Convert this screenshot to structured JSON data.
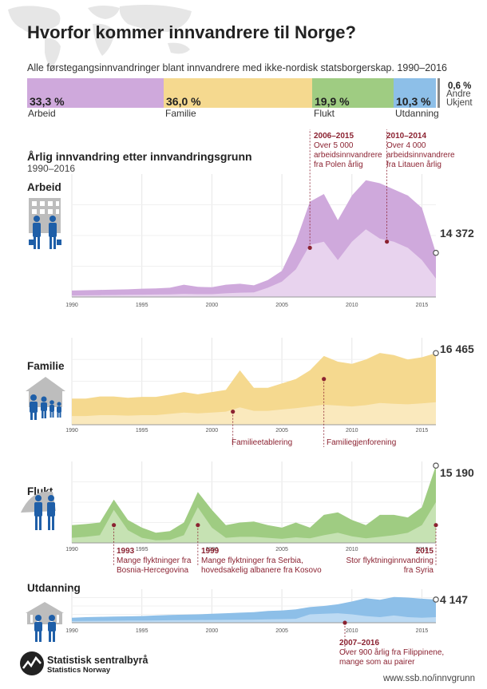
{
  "title": "Hvorfor kommer innvandrere til Norge?",
  "subtitle": "Alle førstegangsinnvandringer blant innvandrere med ikke-nordisk statsborgerskap. 1990–2016",
  "shares": [
    {
      "key": "arbeid",
      "pct": "33,3 %",
      "label": "Arbeid",
      "value": 33.3,
      "color": "#cfa9dc"
    },
    {
      "key": "familie",
      "pct": "36,0 %",
      "label": "Familie",
      "value": 36.0,
      "color": "#f5d98f"
    },
    {
      "key": "flukt",
      "pct": "19,9 %",
      "label": "Flukt",
      "value": 19.9,
      "color": "#9fcc82"
    },
    {
      "key": "utdanning",
      "pct": "10,3 %",
      "label": "Utdanning",
      "value": 10.3,
      "color": "#8dbfe8"
    }
  ],
  "unknown": {
    "pct": "0,6 %",
    "label": "Andre\nUkjent",
    "value": 0.6
  },
  "chart_title": "Årlig innvandring etter innvandringsgrunn",
  "chart_subtitle": "1990–2016",
  "footer": {
    "org": "Statistisk sentralbyrå",
    "org_en": "Statistics Norway",
    "url": "www.ssb.no/innvgrunn"
  },
  "chart_data": [
    {
      "type": "area",
      "name": "Arbeid",
      "title": "Arbeid",
      "x": [
        1990,
        1991,
        1992,
        1993,
        1994,
        1995,
        1996,
        1997,
        1998,
        1999,
        2000,
        2001,
        2002,
        2003,
        2004,
        2005,
        2006,
        2007,
        2008,
        2009,
        2010,
        2011,
        2012,
        2013,
        2014,
        2015,
        2016
      ],
      "total": [
        2100,
        2200,
        2300,
        2400,
        2500,
        2700,
        2800,
        3000,
        4000,
        3300,
        3200,
        4000,
        4300,
        3800,
        5500,
        8500,
        18000,
        31000,
        33500,
        25000,
        33000,
        38000,
        37000,
        35000,
        33000,
        29000,
        14372
      ],
      "inner": [
        500,
        550,
        600,
        650,
        700,
        750,
        800,
        850,
        1000,
        900,
        900,
        1200,
        1400,
        1500,
        3000,
        5000,
        9000,
        17000,
        18000,
        12000,
        18000,
        22000,
        19000,
        18000,
        16000,
        12000,
        6000
      ],
      "ylim": [
        0,
        40000
      ],
      "end_label": "14 372",
      "color_outer": "#cfa9dc",
      "color_inner": "#ecdbf1",
      "line": "#b995c8",
      "annotations": [
        {
          "year": 2007,
          "value": 16000,
          "bold": "2006–2015",
          "text": "Over 5 000\narbeidsinnvandrere\nfra Polen årlig"
        },
        {
          "year": 2012.5,
          "value": 18000,
          "bold": "2010–2014",
          "text": "Over 4 000\narbeidsinnvandrere\nfra Litauen årlig"
        }
      ],
      "xticks": [
        1990,
        1995,
        2000,
        2005,
        2010,
        2015
      ]
    },
    {
      "type": "area",
      "name": "Familie",
      "title": "Familie",
      "x": [
        1990,
        1991,
        1992,
        1993,
        1994,
        1995,
        1996,
        1997,
        1998,
        1999,
        2000,
        2001,
        2002,
        2003,
        2004,
        2005,
        2006,
        2007,
        2008,
        2009,
        2010,
        2011,
        2012,
        2013,
        2014,
        2015,
        2016
      ],
      "total": [
        6000,
        6000,
        6500,
        6500,
        6200,
        6400,
        6400,
        6900,
        7500,
        7000,
        7500,
        8000,
        12500,
        8500,
        8500,
        9500,
        10500,
        12500,
        15800,
        14500,
        14000,
        15000,
        16500,
        16000,
        15000,
        15500,
        16465
      ],
      "inner": [
        2000,
        2000,
        2200,
        2200,
        2100,
        2200,
        2200,
        2500,
        2800,
        2600,
        2800,
        3000,
        4000,
        3200,
        3200,
        3500,
        3800,
        4200,
        4600,
        4400,
        4200,
        4500,
        5000,
        4800,
        4700,
        4900,
        5200
      ],
      "ylim": [
        0,
        20000
      ],
      "end_label": "16 465",
      "color_outer": "#f5d98f",
      "color_inner": "#faebc6",
      "line": "#e8c060",
      "annotations": [
        {
          "year": 2001.5,
          "value": 3000,
          "bold": "",
          "text": "Familieetablering"
        },
        {
          "year": 2008,
          "value": 10500,
          "bold": "",
          "text": "Familiegjenforening"
        }
      ],
      "xticks": [
        1990,
        1995,
        2000,
        2005,
        2010,
        2015
      ]
    },
    {
      "type": "area",
      "name": "Flukt",
      "title": "Flukt",
      "x": [
        1990,
        1991,
        1992,
        1993,
        1994,
        1995,
        1996,
        1997,
        1998,
        1999,
        2000,
        2001,
        2002,
        2003,
        2004,
        2005,
        2006,
        2007,
        2008,
        2009,
        2010,
        2011,
        2012,
        2013,
        2014,
        2015,
        2016
      ],
      "total": [
        3500,
        3700,
        4000,
        8500,
        4500,
        3000,
        2000,
        2300,
        4000,
        10000,
        6500,
        3500,
        4000,
        4200,
        3500,
        3000,
        4000,
        3000,
        5500,
        6000,
        4500,
        3500,
        5500,
        5500,
        5000,
        7000,
        15190
      ],
      "inner": [
        1000,
        1200,
        1500,
        6500,
        2500,
        1000,
        500,
        600,
        1500,
        7000,
        3000,
        1000,
        1200,
        1200,
        1000,
        800,
        1100,
        900,
        1500,
        2000,
        1300,
        900,
        1200,
        1500,
        2000,
        3500,
        8000
      ],
      "ylim": [
        0,
        16000
      ],
      "end_label": "15 190",
      "color_outer": "#9fcc82",
      "color_inner": "#cde5bc",
      "line": "#7fb35e",
      "annotations": [
        {
          "year": 1993,
          "value": 3500,
          "bold": "1993",
          "text": "Mange flyktninger fra\nBosnia-Hercegovina"
        },
        {
          "year": 1999,
          "value": 3500,
          "bold": "1999",
          "text": "Mange flyktninger fra Serbia,\nhovedsakelig albanere fra Kosovo"
        },
        {
          "year": 2016,
          "value": 3500,
          "bold": "2015",
          "text": "Stor flyktninginnvandring\nfra Syria"
        }
      ],
      "xticks": [
        1990,
        1995,
        2000,
        2005,
        2010,
        2015
      ]
    },
    {
      "type": "area",
      "name": "Utdanning",
      "title": "Utdanning",
      "x": [
        1990,
        1991,
        1992,
        1993,
        1994,
        1995,
        1996,
        1997,
        1998,
        1999,
        2000,
        2001,
        2002,
        2003,
        2004,
        2005,
        2006,
        2007,
        2008,
        2009,
        2010,
        2011,
        2012,
        2013,
        2014,
        2015,
        2016
      ],
      "total": [
        900,
        1000,
        1050,
        1100,
        1150,
        1200,
        1300,
        1400,
        1450,
        1500,
        1600,
        1700,
        1800,
        1900,
        2100,
        2200,
        2400,
        2800,
        3000,
        3300,
        3800,
        4400,
        4100,
        4600,
        4500,
        4300,
        4147
      ],
      "inner": [
        300,
        320,
        340,
        360,
        380,
        400,
        420,
        440,
        460,
        480,
        500,
        520,
        540,
        560,
        600,
        650,
        700,
        1500,
        1600,
        1700,
        1500,
        1200,
        1000,
        1300,
        1000,
        900,
        1000
      ],
      "ylim": [
        0,
        6000
      ],
      "end_label": "4 147",
      "color_outer": "#8dbfe8",
      "color_inner": "#c4def4",
      "line": "#5fa1d8",
      "annotations": [
        {
          "year": 2009.5,
          "value": 0,
          "bold": "2007–2016",
          "text": "Over 900 årlig fra Filippinene,\nmange som au pairer"
        }
      ],
      "xticks": [
        1990,
        1995,
        2000,
        2005,
        2010,
        2015
      ]
    }
  ]
}
